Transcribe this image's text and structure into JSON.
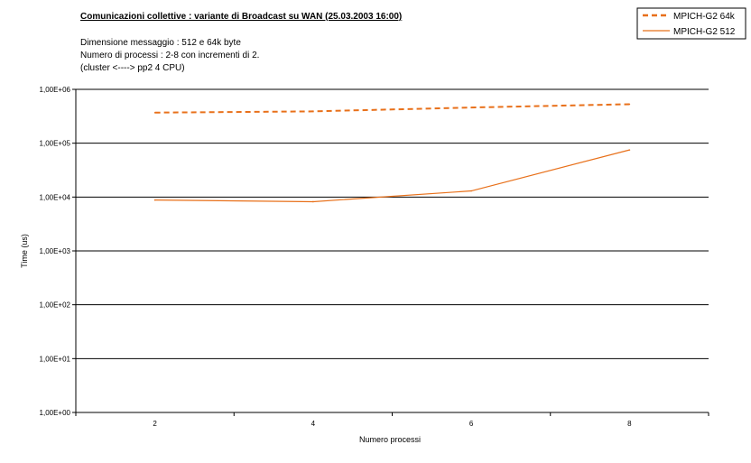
{
  "chart_data": {
    "type": "line",
    "title": "Comunicazioni collettive : variante di Broadcast su WAN (25.03.2003 16:00)",
    "subtitle_lines": [
      "Dimensione messaggio : 512 e 64k byte",
      "Numero di processi : 2-8 con incrementi di 2.",
      "(cluster <----> pp2    4 CPU)"
    ],
    "xlabel": "Numero processi",
    "ylabel": "Time (us)",
    "x_ticks": [
      "2",
      "4",
      "6",
      "8"
    ],
    "y_scale": "log",
    "y_ticks": [
      "1,00E+00",
      "1,00E+01",
      "1,00E+02",
      "1,00E+03",
      "1,00E+04",
      "1,00E+05",
      "1,00E+06"
    ],
    "ylim": [
      1,
      1000000
    ],
    "grid": true,
    "legend_position": "top-right",
    "x": [
      2,
      4,
      6,
      8
    ],
    "series": [
      {
        "name": "MPICH-G2 64k",
        "values": [
          370000,
          390000,
          460000,
          530000
        ],
        "color": "#e8701a",
        "dash": "dashed"
      },
      {
        "name": "MPICH-G2 512",
        "values": [
          8800,
          8200,
          13000,
          75000
        ],
        "color": "#e8701a",
        "dash": "solid"
      }
    ]
  }
}
